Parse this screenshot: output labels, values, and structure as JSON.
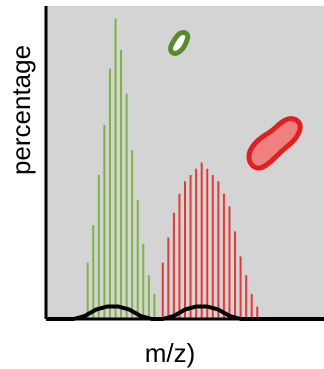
{
  "chart_data": {
    "type": "bar",
    "xlabel": "m/z)",
    "ylabel": "percentage",
    "xlim": [
      0,
      100
    ],
    "ylim": [
      0,
      100
    ],
    "grid": false,
    "background_color": "#d4d4d4",
    "series": [
      {
        "color": "#7cb342",
        "x": [
          15,
          17,
          19,
          21,
          23,
          25,
          27,
          29,
          31,
          33,
          35,
          37,
          39
        ],
        "values": [
          18,
          30,
          46,
          62,
          80,
          96,
          86,
          72,
          54,
          38,
          24,
          14,
          8
        ]
      },
      {
        "color": "#e53935",
        "x": [
          42,
          44,
          46,
          48,
          50,
          52,
          54,
          56,
          58,
          60,
          62,
          64,
          66,
          68,
          70,
          72,
          74,
          76
        ],
        "values": [
          18,
          26,
          34,
          40,
          44,
          46,
          48,
          50,
          48,
          46,
          44,
          40,
          36,
          28,
          20,
          14,
          8,
          4
        ]
      }
    ],
    "baseline_curve": {
      "color": "#000000",
      "x": [
        0,
        10,
        14,
        18,
        22,
        26,
        30,
        34,
        38,
        42,
        46,
        50,
        54,
        58,
        62,
        66,
        70,
        74,
        78,
        100
      ],
      "values": [
        0,
        0,
        1,
        3,
        4,
        4,
        3,
        1,
        0,
        0,
        1,
        3,
        4,
        4,
        3,
        1,
        0,
        0,
        0,
        0
      ]
    },
    "glyphs": [
      {
        "name": "green-blob-icon",
        "color": "#5a8a2e",
        "fill": "#ffffff"
      },
      {
        "name": "red-blob-icon",
        "color": "#e02020",
        "fill": "#f08080"
      }
    ]
  }
}
